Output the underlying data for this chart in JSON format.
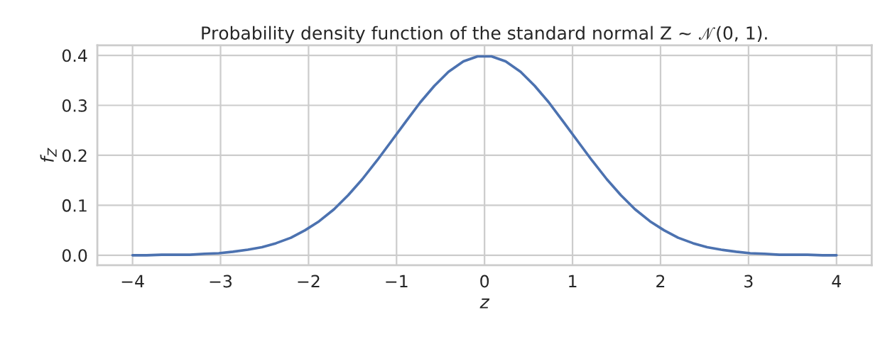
{
  "chart_data": {
    "type": "line",
    "title": "Probability density function of the standard normal Z ∼ 𝒩(0, 1).",
    "xlabel": "z",
    "ylabel": "f$_{Z}$",
    "x": [
      -4.0,
      -3.84,
      -3.67,
      -3.51,
      -3.35,
      -3.18,
      -3.02,
      -2.86,
      -2.69,
      -2.53,
      -2.37,
      -2.2,
      -2.04,
      -1.88,
      -1.71,
      -1.55,
      -1.39,
      -1.22,
      -1.06,
      -0.9,
      -0.73,
      -0.57,
      -0.41,
      -0.24,
      -0.08,
      0.08,
      0.24,
      0.41,
      0.57,
      0.73,
      0.9,
      1.06,
      1.22,
      1.39,
      1.55,
      1.71,
      1.88,
      2.04,
      2.2,
      2.37,
      2.53,
      2.69,
      2.86,
      3.02,
      3.18,
      3.35,
      3.51,
      3.67,
      3.84,
      4.0
    ],
    "series": [
      {
        "color": "#4c72b0",
        "values": [
          0.0,
          0.0,
          0.001,
          0.001,
          0.001,
          0.003,
          0.004,
          0.007,
          0.011,
          0.016,
          0.024,
          0.035,
          0.05,
          0.068,
          0.092,
          0.12,
          0.152,
          0.19,
          0.228,
          0.266,
          0.306,
          0.339,
          0.367,
          0.388,
          0.398,
          0.398,
          0.388,
          0.367,
          0.339,
          0.306,
          0.266,
          0.228,
          0.19,
          0.152,
          0.12,
          0.092,
          0.068,
          0.05,
          0.035,
          0.024,
          0.016,
          0.011,
          0.007,
          0.004,
          0.003,
          0.001,
          0.001,
          0.001,
          0.0,
          0.0
        ]
      }
    ],
    "xlim": [
      -4.4,
      4.4
    ],
    "ylim": [
      -0.02,
      0.42
    ],
    "xticks": [
      -4,
      -3,
      -2,
      -1,
      0,
      1,
      2,
      3,
      4
    ],
    "yticks": [
      {
        "value": 0,
        "label": "0.0"
      },
      0.1,
      0.2,
      0.3,
      0.4
    ],
    "grid": true,
    "legend": false
  }
}
